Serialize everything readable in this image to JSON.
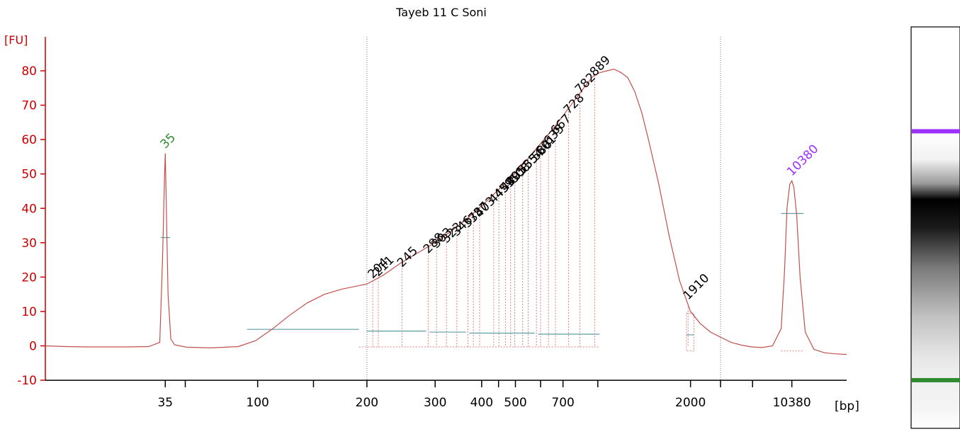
{
  "chart_data": {
    "type": "line",
    "title": "Tayeb 11 C Soni",
    "ylabel": "[FU]",
    "xlabel": "[bp]",
    "ylim": [
      -10,
      85
    ],
    "y_ticks": [
      -10,
      0,
      10,
      20,
      30,
      40,
      50,
      60,
      70,
      80
    ],
    "x_tick_labels": [
      {
        "label": "35",
        "time": 34.68
      },
      {
        "label": "100",
        "time": 37.36
      },
      {
        "label": "200",
        "time": 40.53
      },
      {
        "label": "300",
        "time": 42.51
      },
      {
        "label": "400",
        "time": 43.86
      },
      {
        "label": "500",
        "time": 44.84
      },
      {
        "label": "700",
        "time": 46.22
      },
      {
        "label": "2000",
        "time": 49.92
      },
      {
        "label": "10380",
        "time": 52.86
      }
    ],
    "x_minor_ticks": [
      35.26,
      38.98,
      44.35,
      45.57,
      47.23,
      50.79,
      51.72
    ],
    "time_range": [
      31.2,
      54.45
    ],
    "dotted_vlines": [
      40.53,
      50.79
    ],
    "series": [
      {
        "color": "#c0504d",
        "x": [
          31.2,
          31.8,
          32.4,
          33.0,
          33.6,
          34.2,
          34.52,
          34.6,
          34.66,
          34.68,
          34.7,
          34.76,
          34.84,
          34.95,
          35.3,
          36.0,
          36.8,
          37.3,
          37.8,
          38.3,
          38.8,
          39.3,
          39.8,
          40.53,
          41.0,
          41.5,
          42.0,
          42.5,
          43.0,
          43.5,
          44.0,
          44.5,
          45.0,
          45.5,
          46.0,
          46.3,
          46.6,
          46.9,
          47.1,
          47.3,
          47.5,
          47.7,
          47.9,
          48.1,
          48.3,
          48.5,
          48.7,
          49.0,
          49.3,
          49.6,
          49.92,
          50.2,
          50.5,
          50.8,
          51.1,
          51.4,
          51.7,
          52.0,
          52.3,
          52.55,
          52.65,
          52.72,
          52.8,
          52.86,
          52.92,
          53.0,
          53.1,
          53.25,
          53.5,
          53.8,
          54.1,
          54.45
        ],
        "values": [
          0,
          -0.2,
          -0.3,
          -0.3,
          -0.3,
          -0.2,
          1,
          25,
          50,
          56,
          45,
          15,
          2,
          0.3,
          -0.4,
          -0.6,
          -0.2,
          1.5,
          5,
          9,
          12.5,
          15,
          16.5,
          18,
          20.5,
          24,
          27,
          30,
          33.5,
          37.5,
          42,
          47,
          52,
          58,
          64,
          68,
          72,
          76,
          78.5,
          79.5,
          80,
          80.5,
          79.5,
          78,
          74,
          68,
          60,
          47,
          32,
          19,
          10,
          6.5,
          4,
          2.5,
          1,
          0.2,
          -0.3,
          -0.5,
          0,
          5,
          22,
          40,
          47,
          48,
          46,
          38,
          20,
          4,
          -1,
          -2,
          -2.3,
          -2.5
        ]
      }
    ],
    "annotations": [
      {
        "text": "35",
        "time": 34.68,
        "y": 56,
        "color": "#2e8b2e"
      },
      {
        "text": "10380",
        "time": 52.86,
        "y": 48,
        "color": "#9b30ff"
      },
      {
        "text": "204",
        "time": 40.7,
        "y": 18.2,
        "color": "#000000"
      },
      {
        "text": "211",
        "time": 40.86,
        "y": 18.8,
        "color": "#000000"
      },
      {
        "text": "245",
        "time": 41.55,
        "y": 21.5,
        "color": "#000000"
      },
      {
        "text": "288",
        "time": 42.31,
        "y": 25.5,
        "color": "#000000"
      },
      {
        "text": "303",
        "time": 42.55,
        "y": 27,
        "color": "#000000"
      },
      {
        "text": "323",
        "time": 42.84,
        "y": 28.5,
        "color": "#000000"
      },
      {
        "text": "346",
        "time": 43.14,
        "y": 30.5,
        "color": "#000000"
      },
      {
        "text": "373",
        "time": 43.46,
        "y": 33,
        "color": "#000000"
      },
      {
        "text": "387",
        "time": 43.62,
        "y": 34.5,
        "color": "#000000"
      },
      {
        "text": "403",
        "time": 43.8,
        "y": 36,
        "color": "#000000"
      },
      {
        "text": "445",
        "time": 44.21,
        "y": 40,
        "color": "#000000"
      },
      {
        "text": "459",
        "time": 44.36,
        "y": 41.5,
        "color": "#000000"
      },
      {
        "text": "480",
        "time": 44.55,
        "y": 43.5,
        "color": "#000000"
      },
      {
        "text": "495",
        "time": 44.7,
        "y": 45,
        "color": "#000000"
      },
      {
        "text": "508",
        "time": 44.82,
        "y": 46,
        "color": "#000000"
      },
      {
        "text": "535",
        "time": 45.05,
        "y": 48.5,
        "color": "#000000"
      },
      {
        "text": "554",
        "time": 45.21,
        "y": 50,
        "color": "#000000"
      },
      {
        "text": "586",
        "time": 45.45,
        "y": 52.5,
        "color": "#000000"
      },
      {
        "text": "601",
        "time": 45.57,
        "y": 54,
        "color": "#000000"
      },
      {
        "text": "635",
        "time": 45.8,
        "y": 57,
        "color": "#000000"
      },
      {
        "text": "667",
        "time": 46.0,
        "y": 60,
        "color": "#000000"
      },
      {
        "text": "728",
        "time": 46.38,
        "y": 66,
        "color": "#000000"
      },
      {
        "text": "782",
        "time": 46.71,
        "y": 72,
        "color": "#000000"
      },
      {
        "text": "889",
        "time": 47.14,
        "y": 77,
        "color": "#000000"
      },
      {
        "text": "1910",
        "time": 49.85,
        "y": 12,
        "color": "#000000"
      }
    ],
    "legend": "none",
    "grid": false
  },
  "gel": {
    "bands": [
      {
        "position": 0.26,
        "color": "#9b30ff"
      },
      {
        "position": 0.88,
        "color": "#2e8b2e"
      }
    ]
  }
}
